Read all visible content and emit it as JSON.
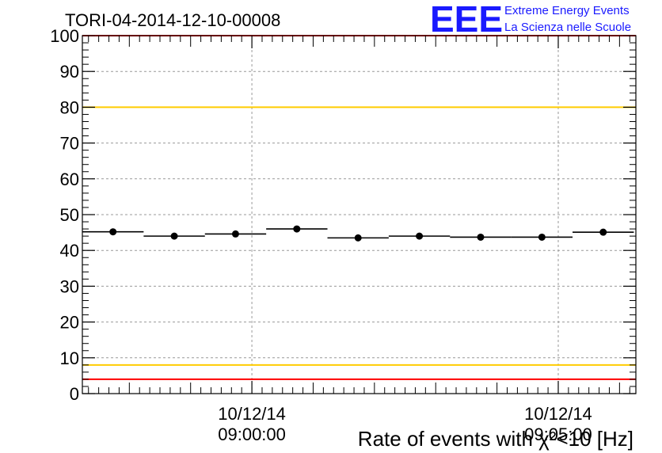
{
  "chart_data": {
    "type": "scatter",
    "title": "TORI-04-2014-12-10-00008",
    "xlabel": "Rate of events with χ²<10 [Hz]",
    "ylabel": "",
    "ylim": [
      0,
      100
    ],
    "yticks": [
      "0",
      "10",
      "20",
      "30",
      "40",
      "50",
      "60",
      "70",
      "80",
      "90",
      "100"
    ],
    "xticks": [
      {
        "t": 6,
        "date": "10/12/14",
        "time": "09:00:00"
      },
      {
        "t": 36,
        "date": "10/12/14",
        "time": "09:05:00"
      }
    ],
    "xlim": [
      -10.6,
      43.6
    ],
    "grid": true,
    "points": [
      {
        "x_start": -10.6,
        "x_end": -4.6,
        "y": 45.2
      },
      {
        "x_start": -4.6,
        "x_end": 1.4,
        "y": 44.0
      },
      {
        "x_start": 1.4,
        "x_end": 7.4,
        "y": 44.6
      },
      {
        "x_start": 7.4,
        "x_end": 13.4,
        "y": 46.0
      },
      {
        "x_start": 13.4,
        "x_end": 19.4,
        "y": 43.5
      },
      {
        "x_start": 19.4,
        "x_end": 25.4,
        "y": 44.0
      },
      {
        "x_start": 25.4,
        "x_end": 31.4,
        "y": 43.7
      },
      {
        "x_start": 31.4,
        "x_end": 37.4,
        "y": 43.7
      },
      {
        "x_start": 37.4,
        "x_end": 43.4,
        "y": 45.1
      }
    ],
    "reference_lines": [
      {
        "y": 4,
        "color": "#ff0000"
      },
      {
        "y": 8,
        "color": "#ffcc00"
      },
      {
        "y": 80,
        "color": "#ffcc00"
      },
      {
        "y": 100,
        "color": "#ff0000"
      }
    ]
  },
  "logo": {
    "mark": "EEE",
    "line1": "Extreme Energy Events",
    "line2": "La Scienza nelle Scuole",
    "color": "#1a1aff"
  }
}
